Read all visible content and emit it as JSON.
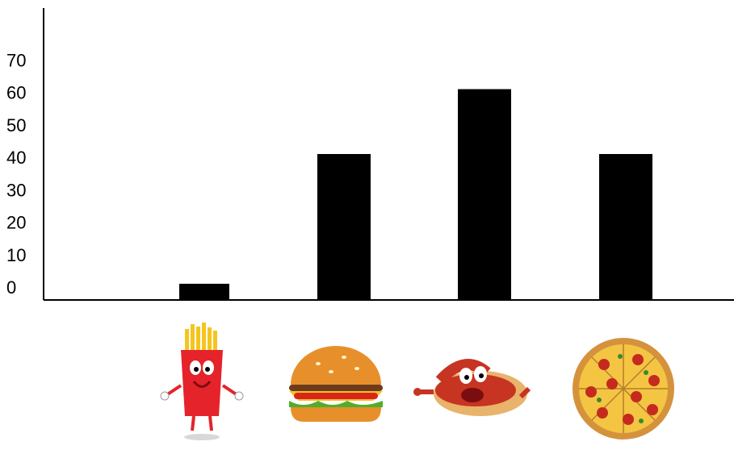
{
  "chart_data": {
    "type": "bar",
    "title": "",
    "xlabel": "",
    "ylabel": "",
    "categories": [
      "fries",
      "burger",
      "hot dog",
      "pizza"
    ],
    "category_icons": [
      "fries-icon",
      "burger-icon",
      "hot-dog-icon",
      "pizza-icon"
    ],
    "values": [
      5,
      45,
      65,
      45
    ],
    "ylim": [
      0,
      90
    ],
    "yticks": [
      "0",
      "10",
      "20",
      "30",
      "40",
      "50",
      "60",
      "70"
    ],
    "grid": false,
    "legend": "none",
    "bar_color": "#000000",
    "axis_color": "#000000"
  }
}
